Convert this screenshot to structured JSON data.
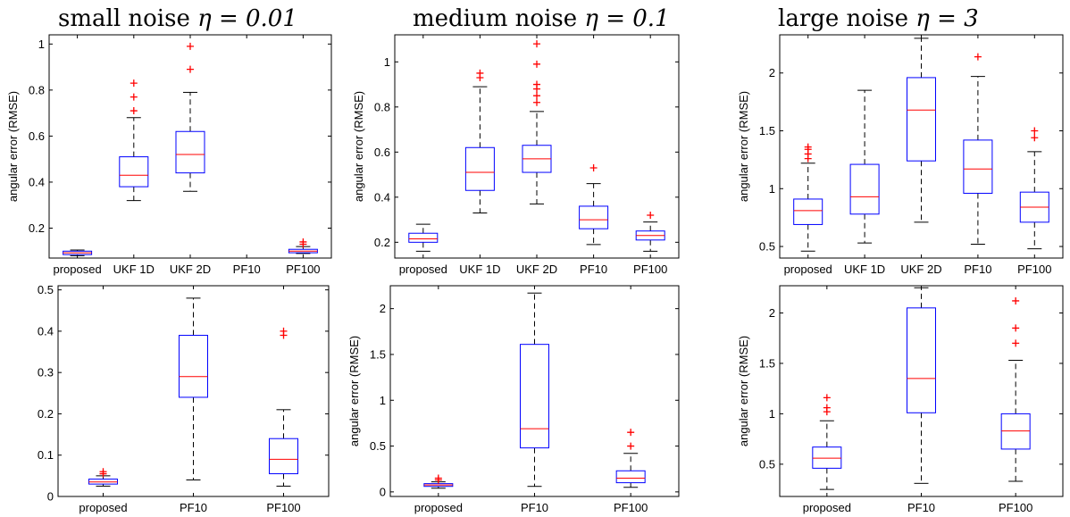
{
  "column_titles": [
    {
      "text": "small noise",
      "eta": "η = 0.01"
    },
    {
      "text": "medium noise",
      "eta": "η = 0.1"
    },
    {
      "text": "large noise",
      "eta": "η = 3"
    }
  ],
  "colors": {
    "box": "#0000ff",
    "median": "#ff0000",
    "outlier": "#ff0000",
    "whisker": "#000000",
    "axis": "#000000"
  },
  "chart_data": [
    {
      "type": "box",
      "title": "small noise η = 0.01",
      "xlabel": "",
      "ylabel": "angular error (RMSE)",
      "ylim": [
        0.07,
        1.04
      ],
      "yticks": [
        0.2,
        0.4,
        0.6,
        0.8,
        1
      ],
      "categories": [
        "proposed",
        "UKF 1D",
        "UKF 2D",
        "PF10",
        "PF100"
      ],
      "boxes": [
        {
          "category": "proposed",
          "min": 0.08,
          "q1": 0.085,
          "median": 0.093,
          "q3": 0.1,
          "max": 0.105,
          "outliers": []
        },
        {
          "category": "UKF 1D",
          "min": 0.32,
          "q1": 0.38,
          "median": 0.43,
          "q3": 0.51,
          "max": 0.68,
          "outliers": [
            0.71,
            0.77,
            0.83
          ]
        },
        {
          "category": "UKF 2D",
          "min": 0.36,
          "q1": 0.44,
          "median": 0.52,
          "q3": 0.62,
          "max": 0.79,
          "outliers": [
            0.89,
            0.99
          ]
        },
        {
          "category": "PF10",
          "min": null,
          "q1": null,
          "median": null,
          "q3": null,
          "max": null,
          "outliers": []
        },
        {
          "category": "PF100",
          "min": 0.09,
          "q1": 0.093,
          "median": 0.1,
          "q3": 0.108,
          "max": 0.12,
          "outliers": [
            0.13,
            0.14
          ]
        }
      ]
    },
    {
      "type": "box",
      "title": "medium noise η = 0.1",
      "xlabel": "",
      "ylabel": "angular error (RMSE)",
      "ylim": [
        0.13,
        1.12
      ],
      "yticks": [
        0.2,
        0.4,
        0.6,
        0.8,
        1
      ],
      "categories": [
        "proposed",
        "UKF 1D",
        "UKF 2D",
        "PF10",
        "PF100"
      ],
      "boxes": [
        {
          "category": "proposed",
          "min": 0.16,
          "q1": 0.2,
          "median": 0.215,
          "q3": 0.24,
          "max": 0.28,
          "outliers": []
        },
        {
          "category": "UKF 1D",
          "min": 0.33,
          "q1": 0.43,
          "median": 0.51,
          "q3": 0.62,
          "max": 0.89,
          "outliers": [
            0.93,
            0.95
          ]
        },
        {
          "category": "UKF 2D",
          "min": 0.37,
          "q1": 0.51,
          "median": 0.57,
          "q3": 0.63,
          "max": 0.78,
          "outliers": [
            0.82,
            0.85,
            0.88,
            0.9,
            0.99,
            1.08
          ]
        },
        {
          "category": "PF10",
          "min": 0.19,
          "q1": 0.26,
          "median": 0.3,
          "q3": 0.36,
          "max": 0.46,
          "outliers": [
            0.53
          ]
        },
        {
          "category": "PF100",
          "min": 0.16,
          "q1": 0.21,
          "median": 0.23,
          "q3": 0.25,
          "max": 0.29,
          "outliers": [
            0.32
          ]
        }
      ]
    },
    {
      "type": "box",
      "title": "large noise η = 3",
      "xlabel": "",
      "ylabel": "angular error (RMSE)",
      "ylim": [
        0.4,
        2.33
      ],
      "yticks": [
        0.5,
        1,
        1.5,
        2
      ],
      "categories": [
        "proposed",
        "UKF 1D",
        "UKF 2D",
        "PF10",
        "PF100"
      ],
      "boxes": [
        {
          "category": "proposed",
          "min": 0.46,
          "q1": 0.69,
          "median": 0.81,
          "q3": 0.91,
          "max": 1.22,
          "outliers": [
            1.26,
            1.3,
            1.34,
            1.36
          ]
        },
        {
          "category": "UKF 1D",
          "min": 0.53,
          "q1": 0.78,
          "median": 0.93,
          "q3": 1.21,
          "max": 1.85,
          "outliers": []
        },
        {
          "category": "UKF 2D",
          "min": 0.71,
          "q1": 1.24,
          "median": 1.68,
          "q3": 1.96,
          "max": 2.3,
          "outliers": []
        },
        {
          "category": "PF10",
          "min": 0.52,
          "q1": 0.96,
          "median": 1.17,
          "q3": 1.42,
          "max": 1.97,
          "outliers": [
            2.14
          ]
        },
        {
          "category": "PF100",
          "min": 0.48,
          "q1": 0.71,
          "median": 0.84,
          "q3": 0.97,
          "max": 1.32,
          "outliers": [
            1.44,
            1.5
          ]
        }
      ]
    },
    {
      "type": "box",
      "title": "",
      "xlabel": "",
      "ylabel": "",
      "ylim": [
        0,
        0.51
      ],
      "yticks": [
        0,
        0.1,
        0.2,
        0.3,
        0.4,
        0.5
      ],
      "categories": [
        "proposed",
        "PF10",
        "PF100"
      ],
      "boxes": [
        {
          "category": "proposed",
          "min": 0.025,
          "q1": 0.03,
          "median": 0.035,
          "q3": 0.042,
          "max": 0.05,
          "outliers": [
            0.055,
            0.06
          ]
        },
        {
          "category": "PF10",
          "min": 0.04,
          "q1": 0.24,
          "median": 0.29,
          "q3": 0.39,
          "max": 0.48,
          "outliers": []
        },
        {
          "category": "PF100",
          "min": 0.025,
          "q1": 0.055,
          "median": 0.09,
          "q3": 0.14,
          "max": 0.21,
          "outliers": [
            0.39,
            0.4
          ]
        }
      ]
    },
    {
      "type": "box",
      "title": "",
      "xlabel": "",
      "ylabel": "angular error (RMSE)",
      "ylim": [
        -0.05,
        2.25
      ],
      "yticks": [
        0,
        0.5,
        1,
        1.5,
        2
      ],
      "categories": [
        "proposed",
        "PF10",
        "PF100"
      ],
      "boxes": [
        {
          "category": "proposed",
          "min": 0.04,
          "q1": 0.06,
          "median": 0.075,
          "q3": 0.09,
          "max": 0.11,
          "outliers": [
            0.13,
            0.15
          ]
        },
        {
          "category": "PF10",
          "min": 0.06,
          "q1": 0.48,
          "median": 0.69,
          "q3": 1.61,
          "max": 2.17,
          "outliers": []
        },
        {
          "category": "PF100",
          "min": 0.05,
          "q1": 0.1,
          "median": 0.15,
          "q3": 0.23,
          "max": 0.42,
          "outliers": [
            0.5,
            0.65
          ]
        }
      ]
    },
    {
      "type": "box",
      "title": "",
      "xlabel": "",
      "ylabel": "angular error (RMSE)",
      "ylim": [
        0.18,
        2.27
      ],
      "yticks": [
        0.5,
        1,
        1.5,
        2
      ],
      "categories": [
        "proposed",
        "PF10",
        "PF100"
      ],
      "boxes": [
        {
          "category": "proposed",
          "min": 0.25,
          "q1": 0.46,
          "median": 0.56,
          "q3": 0.67,
          "max": 0.93,
          "outliers": [
            1.02,
            1.06,
            1.16
          ]
        },
        {
          "category": "PF10",
          "min": 0.31,
          "q1": 1.01,
          "median": 1.35,
          "q3": 2.05,
          "max": 2.25,
          "outliers": []
        },
        {
          "category": "PF100",
          "min": 0.33,
          "q1": 0.65,
          "median": 0.83,
          "q3": 1.0,
          "max": 1.53,
          "outliers": [
            1.7,
            1.85,
            2.12
          ]
        }
      ]
    }
  ]
}
